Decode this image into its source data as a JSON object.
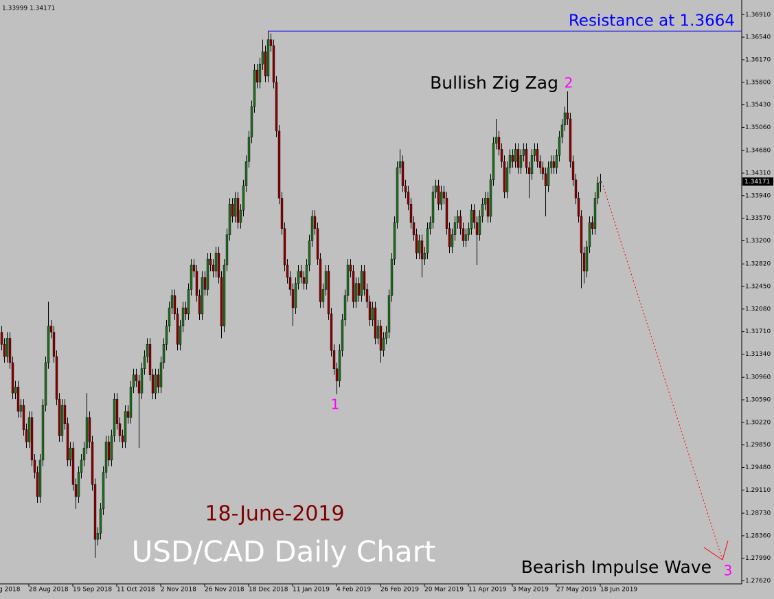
{
  "chart_data": {
    "type": "candlestick",
    "header": "1.33999 1.34171",
    "title": "USD/CAD Daily Chart",
    "date_label": "18-June-2019",
    "first_x_label": "g 2018",
    "annotations": {
      "zigzag": "Bullish Zig Zag",
      "wave2": "2",
      "wave1": "1",
      "wave3": "3",
      "impulse": "Bearish Impulse Wave"
    },
    "resistance": {
      "label": "Resistance at 1.3664",
      "value": 1.3664
    },
    "last_price": 1.34171,
    "up_color": "#1f6e1f",
    "down_color": "#8b0000",
    "ylim": [
      1.2757,
      1.3715
    ],
    "yticks": [
      {
        "value": 1.3691,
        "label": "1.36910"
      },
      {
        "value": 1.3654,
        "label": "1.36540"
      },
      {
        "value": 1.3617,
        "label": "1.36170"
      },
      {
        "value": 1.358,
        "label": "1.35800"
      },
      {
        "value": 1.3543,
        "label": "1.35430"
      },
      {
        "value": 1.3506,
        "label": "1.35060"
      },
      {
        "value": 1.3468,
        "label": "1.34680"
      },
      {
        "value": 1.3431,
        "label": "1.34310"
      },
      {
        "value": 1.3394,
        "label": "1.33940"
      },
      {
        "value": 1.3357,
        "label": "1.33570"
      },
      {
        "value": 1.332,
        "label": "1.33200"
      },
      {
        "value": 1.3282,
        "label": "1.32820"
      },
      {
        "value": 1.3245,
        "label": "1.32450"
      },
      {
        "value": 1.3208,
        "label": "1.32080"
      },
      {
        "value": 1.3171,
        "label": "1.31710"
      },
      {
        "value": 1.3134,
        "label": "1.31340"
      },
      {
        "value": 1.3096,
        "label": "1.30960"
      },
      {
        "value": 1.3059,
        "label": "1.30590"
      },
      {
        "value": 1.3022,
        "label": "1.30220"
      },
      {
        "value": 1.2985,
        "label": "1.29850"
      },
      {
        "value": 1.2948,
        "label": "1.29480"
      },
      {
        "value": 1.2911,
        "label": "1.29110"
      },
      {
        "value": 1.2873,
        "label": "1.28730"
      },
      {
        "value": 1.2836,
        "label": "1.28360"
      },
      {
        "value": 1.2799,
        "label": "1.27990"
      },
      {
        "value": 1.2762,
        "label": "1.27620"
      }
    ],
    "categories": [
      null,
      null,
      null,
      null,
      null,
      null,
      null,
      null,
      null,
      null,
      "28 Aug 2018",
      null,
      null,
      null,
      null,
      null,
      null,
      null,
      null,
      null,
      null,
      null,
      null,
      null,
      null,
      null,
      "19 Sep 2018",
      null,
      null,
      null,
      null,
      null,
      null,
      null,
      null,
      null,
      null,
      null,
      null,
      null,
      null,
      null,
      "11 Oct 2018",
      null,
      null,
      null,
      null,
      null,
      null,
      null,
      null,
      null,
      null,
      null,
      null,
      null,
      null,
      null,
      "2 Nov 2018",
      null,
      null,
      null,
      null,
      null,
      null,
      null,
      null,
      null,
      null,
      null,
      null,
      null,
      null,
      null,
      "26 Nov 2018",
      null,
      null,
      null,
      null,
      null,
      null,
      null,
      null,
      null,
      null,
      null,
      null,
      null,
      null,
      null,
      "18 Dec 2018",
      null,
      null,
      null,
      null,
      null,
      null,
      null,
      null,
      null,
      null,
      null,
      null,
      null,
      null,
      null,
      "11 Jan 2019",
      null,
      null,
      null,
      null,
      null,
      null,
      null,
      null,
      null,
      null,
      null,
      null,
      null,
      null,
      null,
      "4 Feb 2019",
      null,
      null,
      null,
      null,
      null,
      null,
      null,
      null,
      null,
      null,
      null,
      null,
      null,
      null,
      null,
      "26 Feb 2019",
      null,
      null,
      null,
      null,
      null,
      null,
      null,
      null,
      null,
      null,
      null,
      null,
      null,
      null,
      null,
      "20 Mar 2019",
      null,
      null,
      null,
      null,
      null,
      null,
      null,
      null,
      null,
      null,
      null,
      null,
      null,
      null,
      null,
      "11 Apr 2019",
      null,
      null,
      null,
      null,
      null,
      null,
      null,
      null,
      null,
      null,
      null,
      null,
      null,
      null,
      null,
      "3 May 2019",
      null,
      null,
      null,
      null,
      null,
      null,
      null,
      null,
      null,
      null,
      null,
      null,
      null,
      null,
      null,
      "27 May 2019",
      null,
      null,
      null,
      null,
      null,
      null,
      null,
      null,
      null,
      null,
      null,
      null,
      null,
      null,
      null,
      "18 Jun 2019"
    ],
    "open": [
      1.317,
      1.315,
      1.313,
      1.316,
      1.312,
      1.307,
      1.308,
      1.304,
      1.305,
      1.301,
      1.299,
      1.303,
      1.296,
      1.294,
      1.29,
      1.296,
      1.305,
      1.312,
      1.318,
      1.317,
      1.313,
      1.306,
      1.3,
      1.305,
      1.302,
      1.296,
      1.298,
      1.292,
      1.29,
      1.294,
      1.296,
      1.298,
      1.303,
      1.299,
      1.292,
      1.283,
      1.284,
      1.288,
      1.294,
      1.299,
      1.296,
      1.3,
      1.306,
      1.302,
      1.3,
      1.299,
      1.304,
      1.303,
      1.308,
      1.31,
      1.309,
      1.307,
      1.311,
      1.313,
      1.315,
      1.31,
      1.307,
      1.31,
      1.308,
      1.312,
      1.315,
      1.318,
      1.321,
      1.323,
      1.32,
      1.315,
      1.318,
      1.321,
      1.32,
      1.324,
      1.328,
      1.327,
      1.323,
      1.32,
      1.326,
      1.324,
      1.329,
      1.328,
      1.327,
      1.33,
      1.326,
      1.318,
      1.328,
      1.333,
      1.338,
      1.336,
      1.339,
      1.335,
      1.337,
      1.341,
      1.345,
      1.349,
      1.354,
      1.36,
      1.358,
      1.361,
      1.363,
      1.359,
      1.365,
      1.364,
      1.358,
      1.35,
      1.339,
      1.334,
      1.328,
      1.326,
      1.324,
      1.321,
      1.325,
      1.327,
      1.326,
      1.325,
      1.328,
      1.332,
      1.336,
      1.334,
      1.329,
      1.322,
      1.324,
      1.327,
      1.32,
      1.314,
      1.311,
      1.309,
      1.314,
      1.319,
      1.323,
      1.328,
      1.327,
      1.322,
      1.325,
      1.323,
      1.327,
      1.324,
      1.322,
      1.319,
      1.321,
      1.316,
      1.318,
      1.314,
      1.316,
      1.317,
      1.323,
      1.329,
      1.335,
      1.344,
      1.345,
      1.341,
      1.34,
      1.338,
      1.335,
      1.333,
      1.33,
      1.332,
      1.329,
      1.33,
      1.334,
      1.335,
      1.34,
      1.341,
      1.338,
      1.34,
      1.339,
      1.334,
      1.331,
      1.333,
      1.335,
      1.336,
      1.334,
      1.332,
      1.333,
      1.334,
      1.337,
      1.335,
      1.333,
      1.336,
      1.338,
      1.339,
      1.336,
      1.342,
      1.348,
      1.349,
      1.347,
      1.345,
      1.34,
      1.344,
      1.346,
      1.345,
      1.347,
      1.344,
      1.346,
      1.347,
      1.344,
      1.343,
      1.346,
      1.347,
      1.345,
      1.344,
      1.343,
      1.341,
      1.344,
      1.345,
      1.344,
      1.346,
      1.349,
      1.351,
      1.353,
      1.352,
      1.345,
      1.342,
      1.339,
      1.336,
      1.33,
      1.327,
      1.331,
      1.335,
      1.334,
      1.339,
      1.3415
    ],
    "high": [
      1.318,
      1.316,
      1.317,
      1.317,
      1.313,
      1.309,
      1.309,
      1.306,
      1.306,
      1.302,
      1.304,
      1.304,
      1.297,
      1.295,
      1.297,
      1.306,
      1.313,
      1.322,
      1.319,
      1.318,
      1.314,
      1.307,
      1.306,
      1.306,
      1.303,
      1.299,
      1.299,
      1.293,
      1.295,
      1.297,
      1.299,
      1.307,
      1.304,
      1.3,
      1.293,
      1.285,
      1.289,
      1.295,
      1.3,
      1.3,
      1.301,
      1.307,
      1.307,
      1.303,
      1.301,
      1.305,
      1.305,
      1.309,
      1.311,
      1.311,
      1.31,
      1.312,
      1.314,
      1.316,
      1.316,
      1.311,
      1.311,
      1.311,
      1.313,
      1.316,
      1.319,
      1.322,
      1.324,
      1.324,
      1.321,
      1.319,
      1.322,
      1.322,
      1.325,
      1.329,
      1.329,
      1.328,
      1.324,
      1.327,
      1.327,
      1.33,
      1.33,
      1.329,
      1.331,
      1.331,
      1.327,
      1.329,
      1.334,
      1.339,
      1.339,
      1.34,
      1.34,
      1.338,
      1.342,
      1.346,
      1.35,
      1.355,
      1.361,
      1.361,
      1.362,
      1.365,
      1.364,
      1.3664,
      1.366,
      1.365,
      1.359,
      1.351,
      1.34,
      1.335,
      1.329,
      1.327,
      1.325,
      1.326,
      1.328,
      1.328,
      1.327,
      1.329,
      1.333,
      1.337,
      1.337,
      1.335,
      1.33,
      1.325,
      1.328,
      1.328,
      1.321,
      1.315,
      1.312,
      1.315,
      1.32,
      1.324,
      1.329,
      1.329,
      1.328,
      1.326,
      1.326,
      1.328,
      1.328,
      1.325,
      1.323,
      1.322,
      1.322,
      1.319,
      1.319,
      1.317,
      1.318,
      1.324,
      1.33,
      1.336,
      1.345,
      1.347,
      1.346,
      1.342,
      1.341,
      1.339,
      1.336,
      1.334,
      1.333,
      1.333,
      1.331,
      1.335,
      1.336,
      1.341,
      1.342,
      1.342,
      1.341,
      1.341,
      1.34,
      1.335,
      1.334,
      1.336,
      1.337,
      1.337,
      1.335,
      1.334,
      1.335,
      1.338,
      1.338,
      1.336,
      1.337,
      1.339,
      1.34,
      1.34,
      1.343,
      1.349,
      1.352,
      1.35,
      1.348,
      1.346,
      1.345,
      1.347,
      1.347,
      1.348,
      1.348,
      1.347,
      1.348,
      1.348,
      1.345,
      1.347,
      1.348,
      1.348,
      1.346,
      1.345,
      1.344,
      1.345,
      1.346,
      1.346,
      1.347,
      1.35,
      1.352,
      1.354,
      1.3565,
      1.353,
      1.346,
      1.343,
      1.34,
      1.337,
      1.331,
      1.332,
      1.336,
      1.336,
      1.34,
      1.3425,
      1.343
    ],
    "low": [
      1.314,
      1.312,
      1.312,
      1.311,
      1.306,
      1.306,
      1.303,
      1.303,
      1.3,
      1.298,
      1.298,
      1.295,
      1.293,
      1.289,
      1.289,
      1.295,
      1.304,
      1.311,
      1.316,
      1.312,
      1.305,
      1.299,
      1.299,
      1.301,
      1.295,
      1.295,
      1.291,
      1.288,
      1.289,
      1.293,
      1.295,
      1.297,
      1.298,
      1.291,
      1.28,
      1.282,
      1.283,
      1.287,
      1.293,
      1.295,
      1.295,
      1.299,
      1.301,
      1.299,
      1.298,
      1.298,
      1.302,
      1.302,
      1.307,
      1.308,
      1.298,
      1.306,
      1.31,
      1.312,
      1.309,
      1.306,
      1.306,
      1.307,
      1.307,
      1.311,
      1.314,
      1.317,
      1.32,
      1.319,
      1.314,
      1.314,
      1.317,
      1.319,
      1.319,
      1.323,
      1.326,
      1.322,
      1.319,
      1.319,
      1.323,
      1.323,
      1.327,
      1.326,
      1.326,
      1.325,
      1.316,
      1.317,
      1.327,
      1.332,
      1.335,
      1.335,
      1.334,
      1.334,
      1.336,
      1.34,
      1.344,
      1.348,
      1.353,
      1.357,
      1.357,
      1.36,
      1.358,
      1.358,
      1.363,
      1.357,
      1.349,
      1.338,
      1.333,
      1.327,
      1.325,
      1.323,
      1.318,
      1.32,
      1.324,
      1.325,
      1.324,
      1.324,
      1.327,
      1.331,
      1.333,
      1.328,
      1.321,
      1.321,
      1.323,
      1.319,
      1.313,
      1.31,
      1.3068,
      1.308,
      1.313,
      1.318,
      1.322,
      1.326,
      1.321,
      1.321,
      1.322,
      1.322,
      1.323,
      1.321,
      1.318,
      1.318,
      1.315,
      1.315,
      1.312,
      1.313,
      1.315,
      1.316,
      1.322,
      1.328,
      1.334,
      1.343,
      1.34,
      1.339,
      1.337,
      1.334,
      1.332,
      1.329,
      1.329,
      1.326,
      1.328,
      1.329,
      1.333,
      1.334,
      1.339,
      1.337,
      1.337,
      1.338,
      1.333,
      1.33,
      1.33,
      1.332,
      1.334,
      1.333,
      1.331,
      1.331,
      1.332,
      1.333,
      1.334,
      1.328,
      1.332,
      1.335,
      1.337,
      1.335,
      1.335,
      1.341,
      1.347,
      1.346,
      1.344,
      1.339,
      1.339,
      1.343,
      1.344,
      1.344,
      1.343,
      1.343,
      1.345,
      1.343,
      1.339,
      1.342,
      1.345,
      1.344,
      1.343,
      1.342,
      1.336,
      1.34,
      1.343,
      1.343,
      1.343,
      1.345,
      1.348,
      1.35,
      1.351,
      1.344,
      1.341,
      1.338,
      1.335,
      1.3242,
      1.325,
      1.326,
      1.33,
      1.333,
      1.333,
      1.338,
      1.34
    ],
    "close": [
      1.315,
      1.313,
      1.316,
      1.312,
      1.307,
      1.308,
      1.304,
      1.305,
      1.301,
      1.299,
      1.303,
      1.296,
      1.294,
      1.29,
      1.296,
      1.305,
      1.312,
      1.318,
      1.317,
      1.313,
      1.306,
      1.3,
      1.305,
      1.302,
      1.296,
      1.298,
      1.292,
      1.29,
      1.294,
      1.296,
      1.298,
      1.303,
      1.299,
      1.292,
      1.283,
      1.284,
      1.288,
      1.294,
      1.299,
      1.296,
      1.3,
      1.306,
      1.302,
      1.3,
      1.299,
      1.304,
      1.303,
      1.308,
      1.31,
      1.309,
      1.307,
      1.311,
      1.313,
      1.315,
      1.31,
      1.307,
      1.31,
      1.308,
      1.312,
      1.315,
      1.318,
      1.321,
      1.323,
      1.32,
      1.315,
      1.318,
      1.321,
      1.32,
      1.324,
      1.328,
      1.327,
      1.323,
      1.32,
      1.326,
      1.324,
      1.329,
      1.328,
      1.327,
      1.33,
      1.326,
      1.318,
      1.328,
      1.333,
      1.338,
      1.336,
      1.339,
      1.335,
      1.337,
      1.341,
      1.345,
      1.349,
      1.354,
      1.36,
      1.358,
      1.361,
      1.363,
      1.359,
      1.365,
      1.364,
      1.358,
      1.35,
      1.339,
      1.334,
      1.328,
      1.326,
      1.324,
      1.321,
      1.325,
      1.327,
      1.326,
      1.325,
      1.328,
      1.332,
      1.336,
      1.334,
      1.329,
      1.322,
      1.324,
      1.327,
      1.32,
      1.314,
      1.311,
      1.309,
      1.314,
      1.319,
      1.323,
      1.328,
      1.327,
      1.322,
      1.325,
      1.323,
      1.327,
      1.324,
      1.322,
      1.319,
      1.321,
      1.316,
      1.318,
      1.314,
      1.316,
      1.317,
      1.323,
      1.329,
      1.335,
      1.344,
      1.345,
      1.341,
      1.34,
      1.338,
      1.335,
      1.333,
      1.33,
      1.332,
      1.329,
      1.33,
      1.334,
      1.335,
      1.34,
      1.341,
      1.338,
      1.34,
      1.339,
      1.334,
      1.331,
      1.333,
      1.335,
      1.336,
      1.334,
      1.332,
      1.333,
      1.334,
      1.337,
      1.335,
      1.333,
      1.336,
      1.338,
      1.339,
      1.336,
      1.342,
      1.348,
      1.349,
      1.347,
      1.345,
      1.34,
      1.344,
      1.346,
      1.345,
      1.347,
      1.344,
      1.346,
      1.347,
      1.344,
      1.343,
      1.346,
      1.347,
      1.345,
      1.344,
      1.343,
      1.341,
      1.344,
      1.345,
      1.344,
      1.346,
      1.349,
      1.351,
      1.353,
      1.352,
      1.345,
      1.342,
      1.339,
      1.336,
      1.33,
      1.327,
      1.331,
      1.335,
      1.334,
      1.339,
      1.3415,
      1.34171
    ]
  }
}
